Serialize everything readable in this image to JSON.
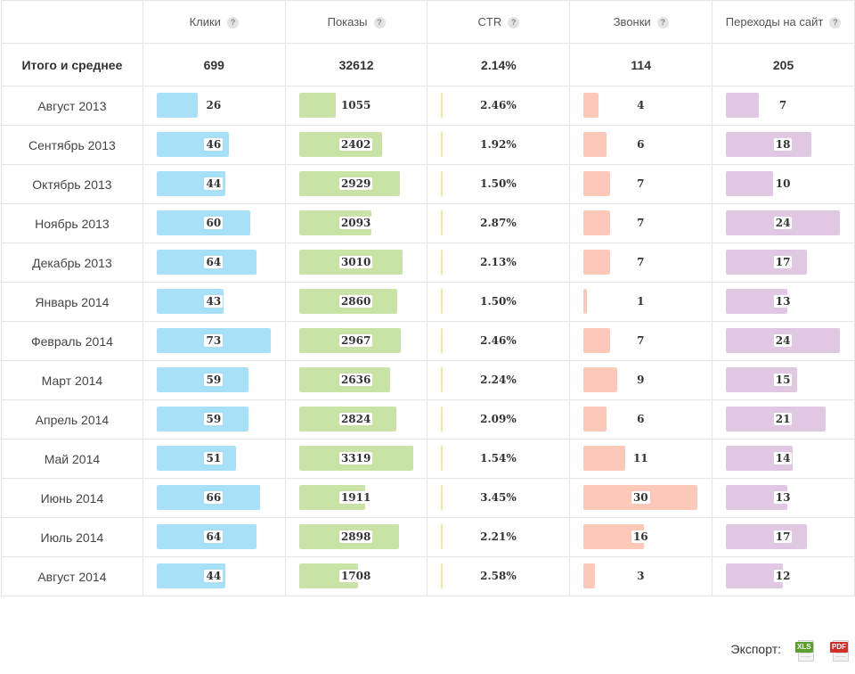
{
  "header": {
    "columns": [
      {
        "label": "Клики",
        "help": "?"
      },
      {
        "label": "Показы",
        "help": "?"
      },
      {
        "label": "CTR",
        "help": "?"
      },
      {
        "label": "Звонки",
        "help": "?"
      },
      {
        "label": "Переходы на сайт",
        "help": "?"
      }
    ]
  },
  "totals": {
    "label": "Итого и среднее",
    "clicks": "699",
    "impressions": "32612",
    "ctr": "2.14%",
    "calls": "114",
    "visits": "205"
  },
  "colors": {
    "clicks": "#a8e0f7",
    "impressions": "#c9e2a5",
    "ctr": "#f7e6a3",
    "calls": "#fcc8ba",
    "visits": "#e0c8e3"
  },
  "rows": [
    {
      "month": "Август 2013",
      "clicks": "26",
      "impressions": "1055",
      "ctr": "2.46%",
      "calls": "4",
      "visits": "7"
    },
    {
      "month": "Сентябрь 2013",
      "clicks": "46",
      "impressions": "2402",
      "ctr": "1.92%",
      "calls": "6",
      "visits": "18"
    },
    {
      "month": "Октябрь 2013",
      "clicks": "44",
      "impressions": "2929",
      "ctr": "1.50%",
      "calls": "7",
      "visits": "10"
    },
    {
      "month": "Ноябрь 2013",
      "clicks": "60",
      "impressions": "2093",
      "ctr": "2.87%",
      "calls": "7",
      "visits": "24"
    },
    {
      "month": "Декабрь 2013",
      "clicks": "64",
      "impressions": "3010",
      "ctr": "2.13%",
      "calls": "7",
      "visits": "17"
    },
    {
      "month": "Январь 2014",
      "clicks": "43",
      "impressions": "2860",
      "ctr": "1.50%",
      "calls": "1",
      "visits": "13"
    },
    {
      "month": "Февраль 2014",
      "clicks": "73",
      "impressions": "2967",
      "ctr": "2.46%",
      "calls": "7",
      "visits": "24"
    },
    {
      "month": "Март 2014",
      "clicks": "59",
      "impressions": "2636",
      "ctr": "2.24%",
      "calls": "9",
      "visits": "15"
    },
    {
      "month": "Апрель 2014",
      "clicks": "59",
      "impressions": "2824",
      "ctr": "2.09%",
      "calls": "6",
      "visits": "21"
    },
    {
      "month": "Май 2014",
      "clicks": "51",
      "impressions": "3319",
      "ctr": "1.54%",
      "calls": "11",
      "visits": "14"
    },
    {
      "month": "Июнь 2014",
      "clicks": "66",
      "impressions": "1911",
      "ctr": "3.45%",
      "calls": "30",
      "visits": "13"
    },
    {
      "month": "Июль 2014",
      "clicks": "64",
      "impressions": "2898",
      "ctr": "2.21%",
      "calls": "16",
      "visits": "17"
    },
    {
      "month": "Август 2014",
      "clicks": "44",
      "impressions": "1708",
      "ctr": "2.58%",
      "calls": "3",
      "visits": "12"
    }
  ],
  "export": {
    "label": "Экспорт:",
    "xls": "XLS",
    "pdf": "PDF"
  }
}
